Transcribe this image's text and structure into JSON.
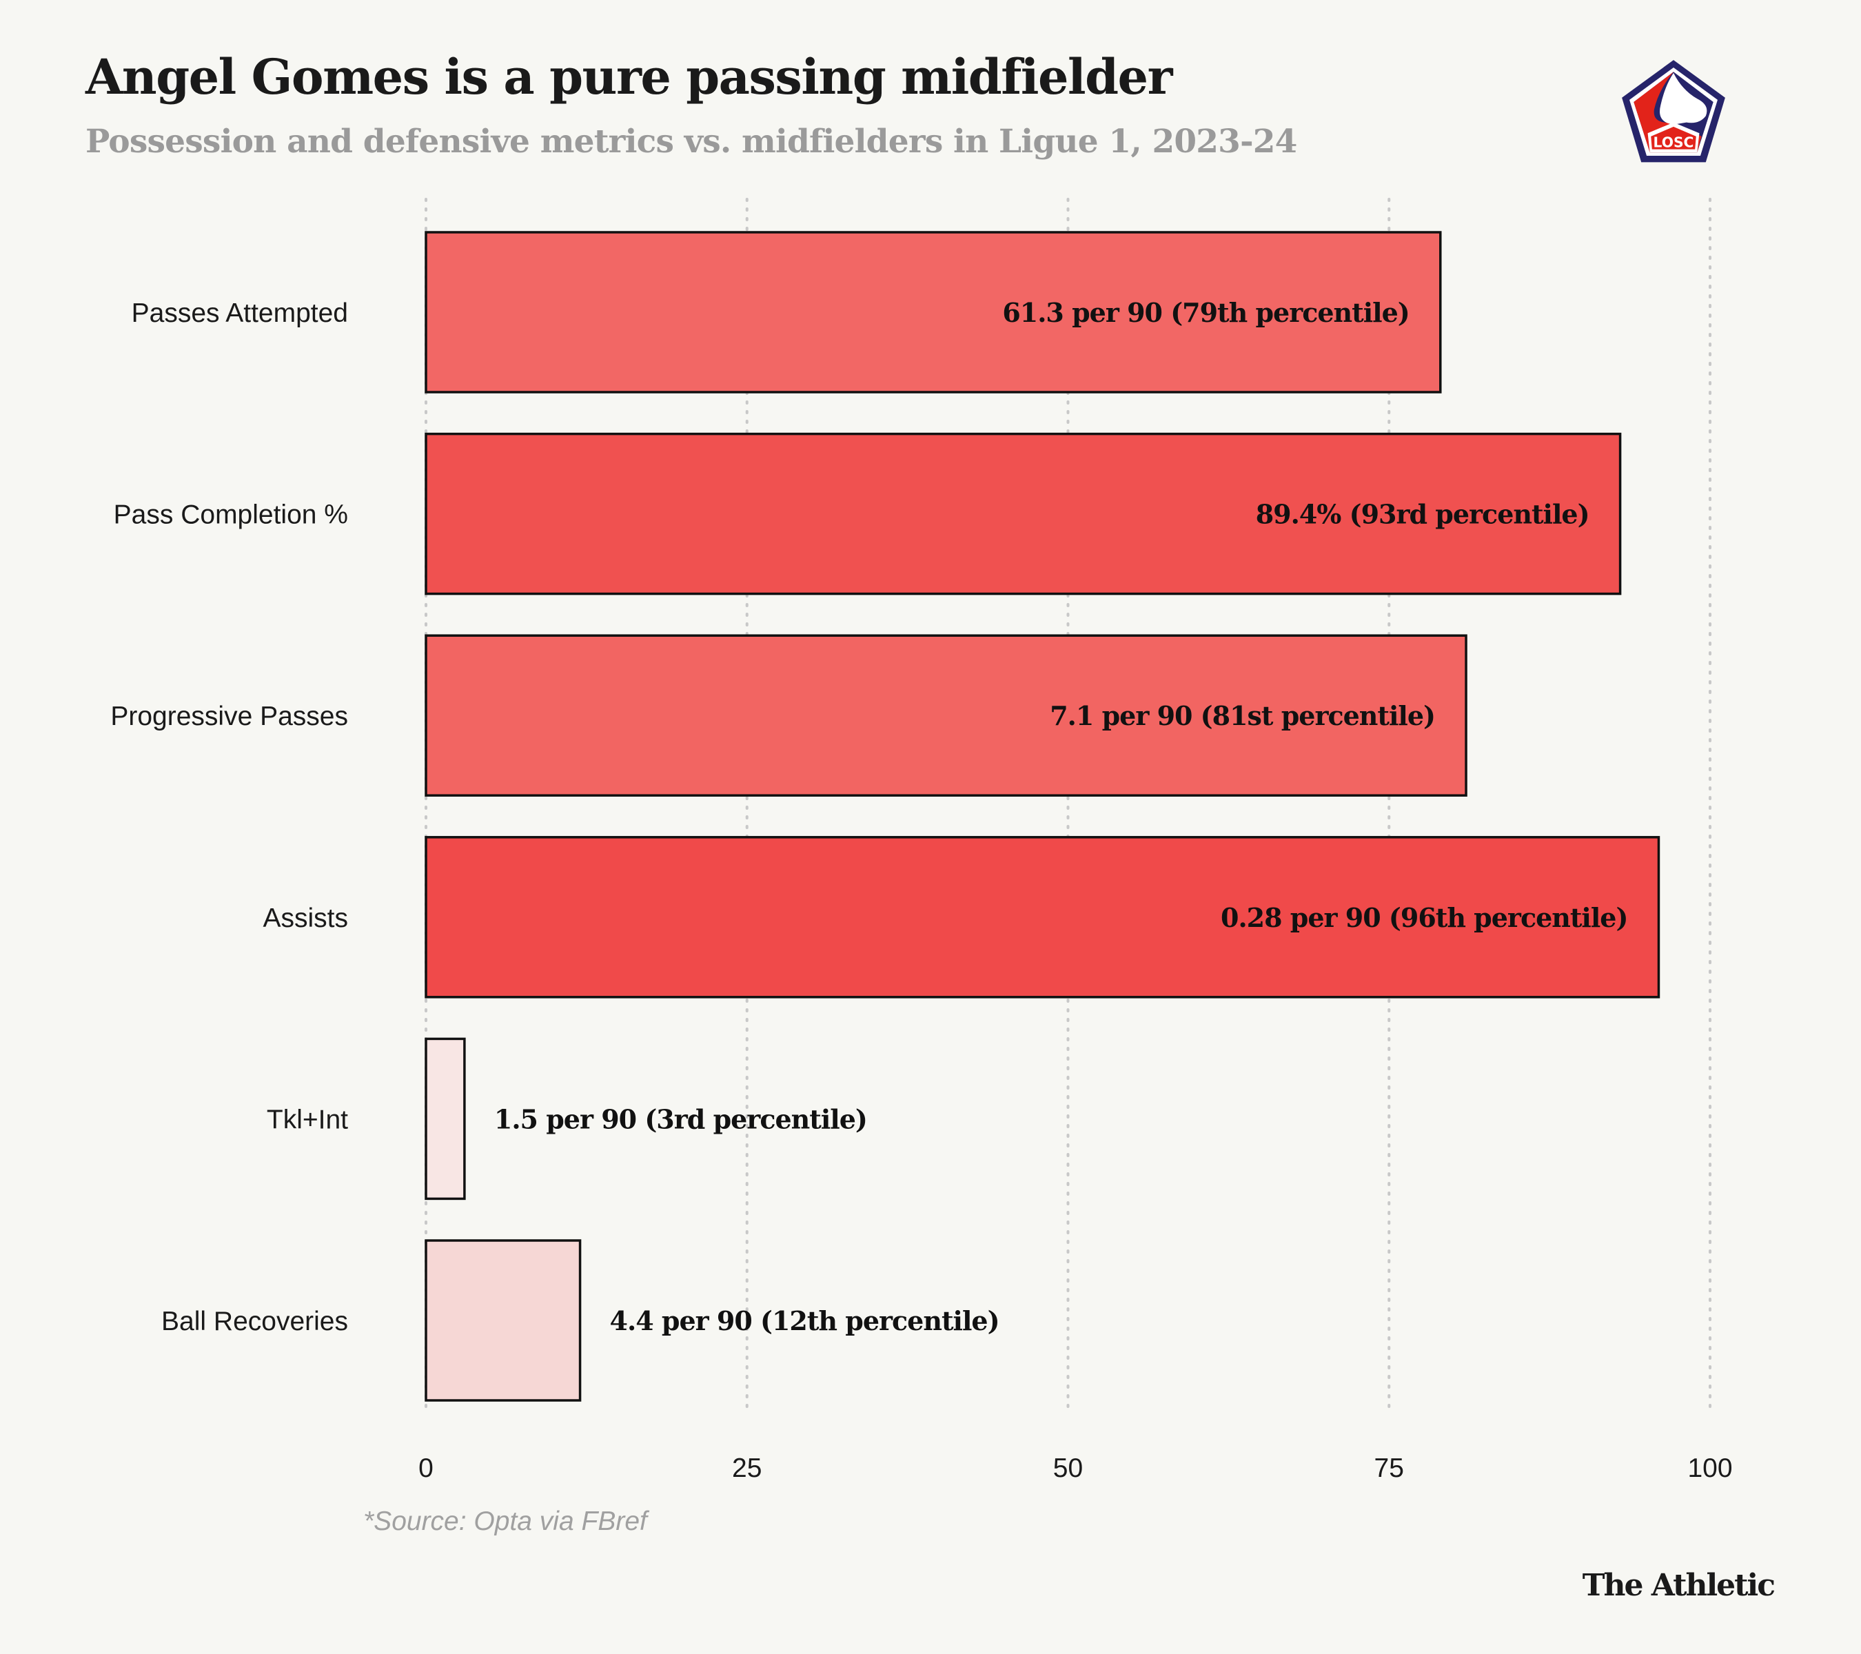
{
  "chart_data": {
    "type": "bar",
    "orientation": "horizontal",
    "title": "Angel Gomes is a pure passing midfielder",
    "subtitle": "Possession and defensive metrics vs. midfielders in Ligue 1, 2023-24",
    "xlabel": "",
    "ylabel": "",
    "xlim": [
      0,
      100
    ],
    "xticks": [
      "0",
      "25",
      "50",
      "75",
      "100"
    ],
    "xtick_values": [
      0,
      25,
      50,
      75,
      100
    ],
    "grid": "vertical dotted",
    "categories": [
      "Passes Attempted",
      "Pass Completion %",
      "Progressive Passes",
      "Assists",
      "Tkl+Int",
      "Ball Recoveries"
    ],
    "values": [
      79,
      93,
      81,
      96,
      3,
      12
    ],
    "data_labels": [
      "61.3 per 90 (79th percentile)",
      "89.4% (93rd percentile)",
      "7.1 per 90 (81st percentile)",
      "0.28 per 90 (96th percentile)",
      "1.5 per 90 (3rd percentile)",
      "4.4 per 90 (12th percentile)"
    ],
    "colors": [
      "#f26765",
      "#f05150",
      "#f26562",
      "#f04a4a",
      "#f8e6e4",
      "#f6d7d5"
    ]
  },
  "source": "*Source: Opta via FBref",
  "brand": "The Athletic",
  "logo": {
    "name": "LOSC crest",
    "text": "LOSC",
    "colors": {
      "navy": "#26246a",
      "red": "#e2231a"
    }
  }
}
